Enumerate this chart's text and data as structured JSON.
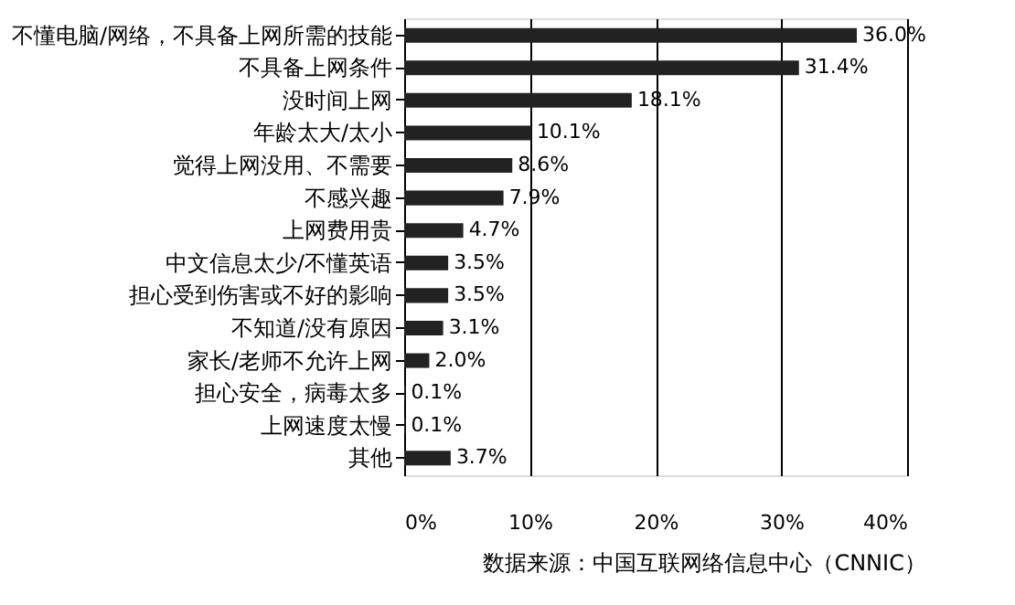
{
  "chart_data": {
    "type": "bar",
    "orientation": "horizontal",
    "categories": [
      "不懂电脑/网络，不具备上网所需的技能",
      "不具备上网条件",
      "没时间上网",
      "年龄太大/太小",
      "觉得上网没用、不需要",
      "不感兴趣",
      "上网费用贵",
      "中文信息太少/不懂英语",
      "担心受到伤害或不好的影响",
      "不知道/没有原因",
      "家长/老师不允许上网",
      "担心安全，病毒太多",
      "上网速度太慢",
      "其他"
    ],
    "values": [
      36.0,
      31.4,
      18.1,
      10.1,
      8.6,
      7.9,
      4.7,
      3.5,
      3.5,
      3.1,
      2.0,
      0.1,
      0.1,
      3.7
    ],
    "value_labels": [
      "36.0%",
      "31.4%",
      "18.1%",
      "10.1%",
      "8.6%",
      "7.9%",
      "4.7%",
      "3.5%",
      "3.5%",
      "3.1%",
      "2.0%",
      "0.1%",
      "0.1%",
      "3.7%"
    ],
    "color": "#222222",
    "xlim": [
      0,
      40
    ],
    "xticks": [
      {
        "value": 0,
        "label": "0%"
      },
      {
        "value": 10,
        "label": "10%"
      },
      {
        "value": 20,
        "label": "20%"
      },
      {
        "value": 30,
        "label": "30%"
      },
      {
        "value": 40,
        "label": "40%"
      }
    ],
    "grid": "x",
    "annotations": [
      "数据来源：中国互联网络信息中心（CNNIC）"
    ]
  }
}
